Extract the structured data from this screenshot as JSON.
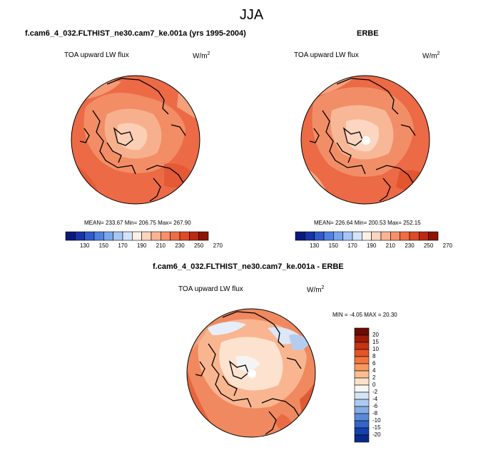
{
  "page_title": "JJA",
  "panels": [
    {
      "title": "f.cam6_4_032.FLTHIST_ne30.cam7_ke.001a (yrs 1995-2004)",
      "variable": "TOA upward LW flux",
      "units": "W/m",
      "units_sup": "2",
      "stats": "MEAN= 233.67   Min= 206.75   Max= 267.90",
      "colorbar_ticks": [
        "130",
        "150",
        "170",
        "190",
        "210",
        "230",
        "250",
        "270"
      ]
    },
    {
      "title": "ERBE",
      "variable": "TOA upward LW flux",
      "units": "W/m",
      "units_sup": "2",
      "stats": "MEAN= 226.64   Min= 200.53   Max= 252.15",
      "colorbar_ticks": [
        "130",
        "150",
        "170",
        "190",
        "210",
        "230",
        "250",
        "270"
      ]
    },
    {
      "title": "f.cam6_4_032.FLTHIST_ne30.cam7_ke.001a - ERBE",
      "variable": "TOA upward LW flux",
      "units": "W/m",
      "units_sup": "2",
      "stats": "MIN =  -4.05  MAX =  20.30",
      "colorbar_ticks": [
        "20",
        "15",
        "10",
        "8",
        "6",
        "4",
        "2",
        "0",
        "-2",
        "-4",
        "-6",
        "-8",
        "-10",
        "-15",
        "-20"
      ]
    }
  ],
  "colors": {
    "abs_colorbar": [
      "#0a1a7a",
      "#1733a6",
      "#2e5ccc",
      "#4f82e0",
      "#7aa6ee",
      "#a7c6f5",
      "#d3e3fb",
      "#fff0e6",
      "#fdd4bd",
      "#fbb392",
      "#f79068",
      "#f06c44",
      "#de4a28",
      "#bc2a12",
      "#8e1404"
    ],
    "diff_colorbar": [
      "#6b0d02",
      "#9e1c07",
      "#c83312",
      "#e45426",
      "#f2753f",
      "#f9995f",
      "#fcbe8f",
      "#fee0c8",
      "#f7f7f7",
      "#d6e4f6",
      "#aecaf0",
      "#84ace6",
      "#5b8ad9",
      "#3464c8",
      "#1540ae",
      "#0a2a8a"
    ],
    "map_base_1": "#ec6b46",
    "map_base_2": "#ec6a45",
    "map_base_3": "#f0895f"
  }
}
